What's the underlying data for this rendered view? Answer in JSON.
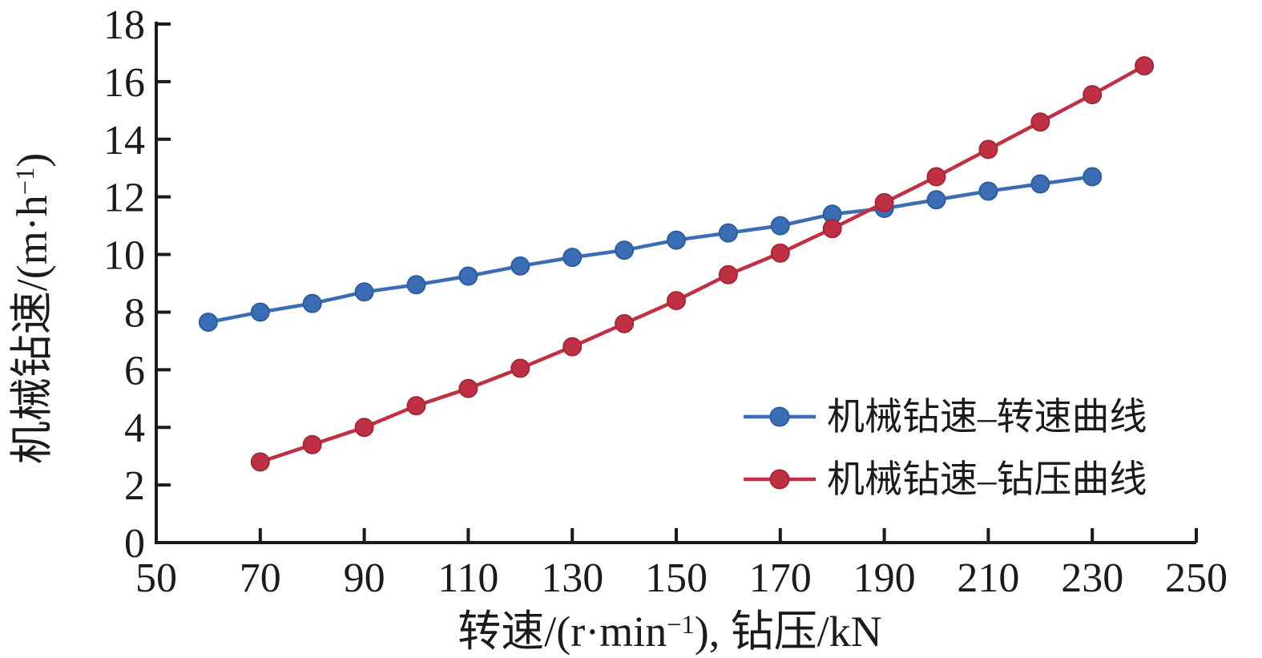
{
  "figure": {
    "background": "#ffffff",
    "axis_color": "#1b1b1b",
    "text_color": "#1b1b1b"
  },
  "chart_data": {
    "type": "line",
    "title": "",
    "xlabel": "转速/(r·min⁻¹), 钻压/kN",
    "ylabel": "机械钻速/(m·h⁻¹)",
    "xlabel_parts": [
      {
        "t": "转速/(r·min"
      },
      {
        "t": "−1",
        "sup": true
      },
      {
        "t": "), 钻压/kN"
      }
    ],
    "ylabel_parts": [
      {
        "t": "机械钻速/(m·h"
      },
      {
        "t": "−1",
        "sup": true
      },
      {
        "t": ")"
      }
    ],
    "xlim": [
      50,
      250
    ],
    "ylim": [
      0,
      18
    ],
    "xticks": [
      50,
      70,
      90,
      110,
      130,
      150,
      170,
      190,
      210,
      230,
      250
    ],
    "yticks": [
      0,
      2,
      4,
      6,
      8,
      10,
      12,
      14,
      16,
      18
    ],
    "grid": false,
    "legend_position": "inside right, lower half",
    "series": [
      {
        "name": "机械钻速–转速曲线",
        "color": "#3b6db4",
        "edge_color": "#2e5d9d",
        "marker": "circle",
        "x": [
          60,
          70,
          80,
          90,
          100,
          110,
          120,
          130,
          140,
          150,
          160,
          170,
          180,
          190,
          200,
          210,
          220,
          230
        ],
        "values": [
          7.65,
          8.0,
          8.3,
          8.7,
          8.95,
          9.25,
          9.6,
          9.9,
          10.15,
          10.5,
          10.75,
          11.0,
          11.4,
          11.6,
          11.9,
          12.2,
          12.45,
          12.7
        ]
      },
      {
        "name": "机械钻速–钻压曲线",
        "color": "#bf3044",
        "edge_color": "#a22937",
        "marker": "circle",
        "x": [
          70,
          80,
          90,
          100,
          110,
          120,
          130,
          140,
          150,
          160,
          170,
          180,
          190,
          200,
          210,
          220,
          230,
          240
        ],
        "values": [
          2.8,
          3.4,
          4.0,
          4.75,
          5.35,
          6.05,
          6.8,
          7.6,
          8.4,
          9.3,
          10.05,
          10.9,
          11.8,
          12.7,
          13.65,
          14.6,
          15.55,
          16.55
        ]
      }
    ]
  }
}
